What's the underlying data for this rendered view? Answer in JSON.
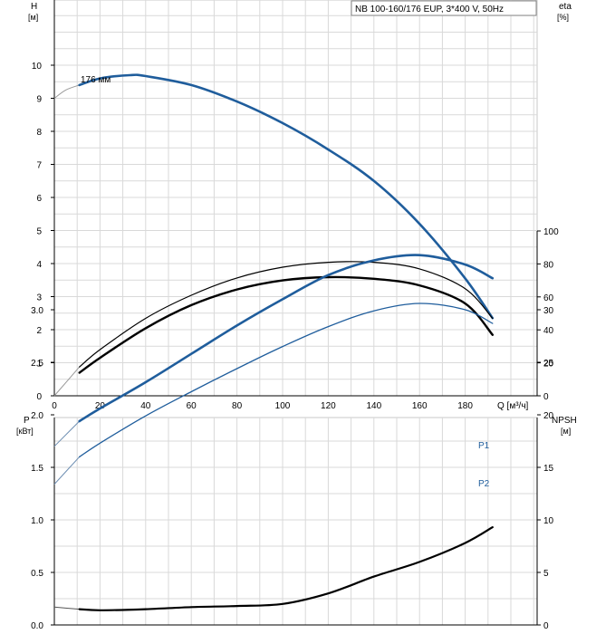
{
  "chart_data": [
    {
      "type": "line",
      "title": "NB 100-160/176 EUP, 3*400 V, 50Hz",
      "left_axis": {
        "label": "H",
        "unit": "[м]",
        "ticks": [
          0,
          1,
          2,
          3,
          4,
          5,
          6,
          7,
          8,
          9,
          10
        ],
        "range": [
          0,
          11
        ]
      },
      "right_axis": {
        "label": "eta",
        "unit": "[%]",
        "ticks": [
          0,
          20,
          40,
          60,
          80,
          100
        ],
        "range": [
          0,
          100
        ]
      },
      "x_axis": {
        "label": "Q [м³/ч]",
        "ticks": [
          0,
          20,
          40,
          60,
          80,
          100,
          120,
          140,
          160,
          180
        ],
        "range": [
          0,
          212
        ]
      },
      "annotation": "176 мм",
      "series": [
        {
          "key": "head",
          "axis": "left",
          "color": "#1f5d9c",
          "width": 2.6,
          "x": [
            11,
            20,
            33,
            40,
            60,
            80,
            100,
            120,
            140,
            160,
            180,
            192
          ],
          "y": [
            9.4,
            9.6,
            9.7,
            9.67,
            9.4,
            8.9,
            8.25,
            7.45,
            6.5,
            5.2,
            3.55,
            2.35
          ],
          "ext_x": [
            0,
            5,
            11
          ],
          "ext_y": [
            9.0,
            9.25,
            9.4
          ]
        },
        {
          "key": "eta_thin",
          "axis": "right",
          "color": "#000000",
          "width": 1.2,
          "x": [
            11,
            20,
            40,
            60,
            80,
            100,
            120,
            140,
            160,
            180,
            192
          ],
          "y": [
            17.5,
            28,
            47,
            61,
            71.5,
            78,
            81,
            81,
            77,
            65,
            47
          ],
          "ext_x": [
            0,
            11
          ],
          "ext_y": [
            0,
            17.5
          ]
        },
        {
          "key": "eta_thick",
          "axis": "right",
          "color": "#000000",
          "width": 2.4,
          "x": [
            11,
            20,
            40,
            60,
            80,
            100,
            120,
            140,
            160,
            180,
            192
          ],
          "y": [
            14,
            23,
            41,
            55,
            64.5,
            70,
            72,
            71,
            67,
            56,
            37
          ]
        }
      ]
    },
    {
      "type": "line",
      "left_axis": {
        "label": "P",
        "unit": "[кВт]",
        "ticks": [
          0.0,
          0.5,
          1.0,
          1.5,
          2.0,
          2.5,
          3.0
        ],
        "range": [
          0,
          3.5
        ]
      },
      "right_axis": {
        "label": "NPSH",
        "unit": "[м]",
        "ticks": [
          0,
          5,
          10,
          15,
          20,
          25,
          30
        ],
        "range": [
          0,
          35
        ]
      },
      "series": [
        {
          "key": "P1",
          "name": "P1",
          "axis": "left",
          "color": "#1f5d9c",
          "width": 2.6,
          "x": [
            11,
            20,
            40,
            60,
            80,
            100,
            120,
            140,
            160,
            180,
            192
          ],
          "y": [
            1.94,
            2.06,
            2.31,
            2.58,
            2.85,
            3.1,
            3.33,
            3.47,
            3.52,
            3.43,
            3.3
          ],
          "ext_x": [
            0,
            11
          ],
          "ext_y": [
            1.7,
            1.94
          ]
        },
        {
          "key": "P2",
          "name": "P2",
          "axis": "left",
          "color": "#1f5d9c",
          "width": 1.3,
          "x": [
            11,
            20,
            40,
            60,
            80,
            100,
            120,
            140,
            160,
            180,
            192
          ],
          "y": [
            1.6,
            1.73,
            1.99,
            2.22,
            2.44,
            2.65,
            2.84,
            2.99,
            3.06,
            3.0,
            2.87
          ],
          "ext_x": [
            0,
            11
          ],
          "ext_y": [
            1.34,
            1.6
          ]
        },
        {
          "key": "npsh",
          "axis": "right",
          "color": "#000000",
          "width": 2.2,
          "x": [
            11,
            20,
            40,
            60,
            80,
            100,
            120,
            140,
            160,
            180,
            192
          ],
          "y": [
            1.5,
            1.4,
            1.5,
            1.7,
            1.8,
            2.0,
            3.0,
            4.6,
            6.0,
            7.8,
            9.3
          ],
          "ext_x": [
            0,
            11
          ],
          "ext_y": [
            1.7,
            1.5
          ]
        }
      ]
    }
  ]
}
